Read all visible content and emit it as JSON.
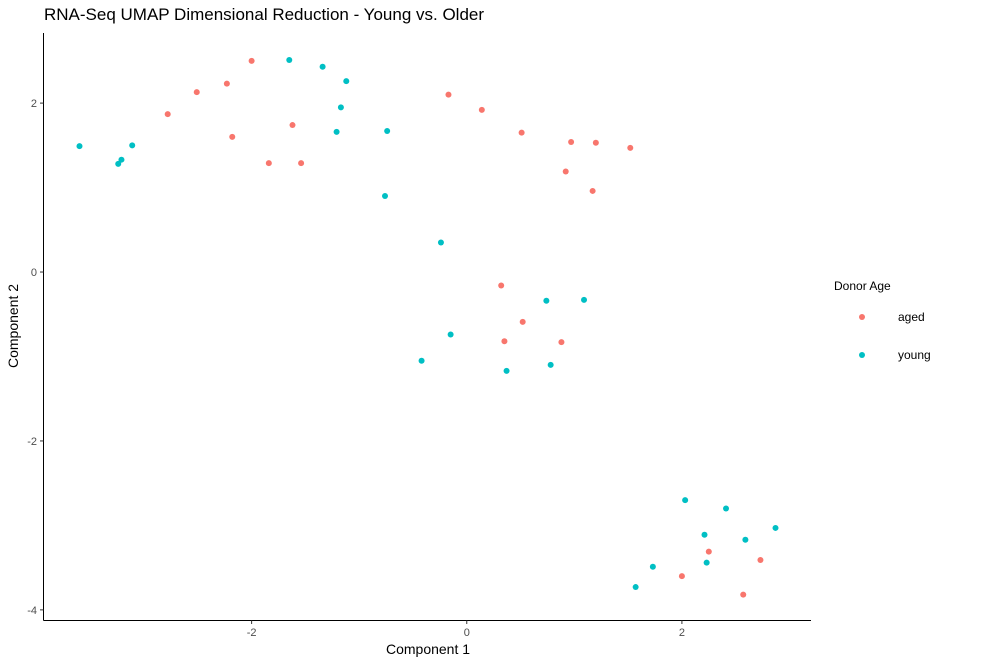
{
  "chart_data": {
    "type": "scatter",
    "title": "RNA-Seq UMAP Dimensional Reduction - Young vs. Older",
    "xlabel": "Component 1",
    "ylabel": "Component 2",
    "xlim": [
      -3.93,
      3.2
    ],
    "ylim": [
      -4.12,
      2.83
    ],
    "x_ticks": [
      -2,
      0,
      2
    ],
    "y_ticks": [
      -4,
      -2,
      0,
      2
    ],
    "x_tick_labels": [
      "-2",
      "0",
      "2"
    ],
    "y_tick_labels": [
      "-4",
      "-2",
      "0",
      "2"
    ],
    "grid": false,
    "legend": {
      "title": "Donor Age",
      "position": "right"
    },
    "series": [
      {
        "name": "aged",
        "color": "#F8766D",
        "points": [
          [
            -2.0,
            2.5
          ],
          [
            -2.23,
            2.23
          ],
          [
            -2.51,
            2.13
          ],
          [
            -2.78,
            1.87
          ],
          [
            -2.18,
            1.6
          ],
          [
            -1.62,
            1.74
          ],
          [
            -1.84,
            1.29
          ],
          [
            -1.54,
            1.29
          ],
          [
            -0.17,
            2.1
          ],
          [
            0.14,
            1.92
          ],
          [
            0.51,
            1.65
          ],
          [
            0.97,
            1.54
          ],
          [
            1.2,
            1.53
          ],
          [
            1.52,
            1.47
          ],
          [
            0.92,
            1.19
          ],
          [
            1.17,
            0.96
          ],
          [
            0.32,
            -0.16
          ],
          [
            0.52,
            -0.59
          ],
          [
            0.35,
            -0.82
          ],
          [
            0.88,
            -0.83
          ],
          [
            2.25,
            -3.31
          ],
          [
            2.73,
            -3.41
          ],
          [
            2.0,
            -3.6
          ],
          [
            2.57,
            -3.82
          ]
        ]
      },
      {
        "name": "young",
        "color": "#00BFC4",
        "points": [
          [
            -3.6,
            1.49
          ],
          [
            -3.21,
            1.33
          ],
          [
            -3.24,
            1.28
          ],
          [
            -3.11,
            1.5
          ],
          [
            -1.65,
            2.51
          ],
          [
            -1.34,
            2.43
          ],
          [
            -1.12,
            2.26
          ],
          [
            -1.17,
            1.95
          ],
          [
            -1.21,
            1.66
          ],
          [
            -0.74,
            1.67
          ],
          [
            -0.76,
            0.9
          ],
          [
            -0.24,
            0.35
          ],
          [
            0.74,
            -0.34
          ],
          [
            1.09,
            -0.33
          ],
          [
            -0.15,
            -0.74
          ],
          [
            -0.42,
            -1.05
          ],
          [
            0.37,
            -1.17
          ],
          [
            0.78,
            -1.1
          ],
          [
            2.03,
            -2.7
          ],
          [
            2.41,
            -2.8
          ],
          [
            2.87,
            -3.03
          ],
          [
            2.21,
            -3.11
          ],
          [
            2.59,
            -3.17
          ],
          [
            2.23,
            -3.44
          ],
          [
            1.73,
            -3.49
          ],
          [
            1.57,
            -3.73
          ]
        ]
      }
    ]
  }
}
